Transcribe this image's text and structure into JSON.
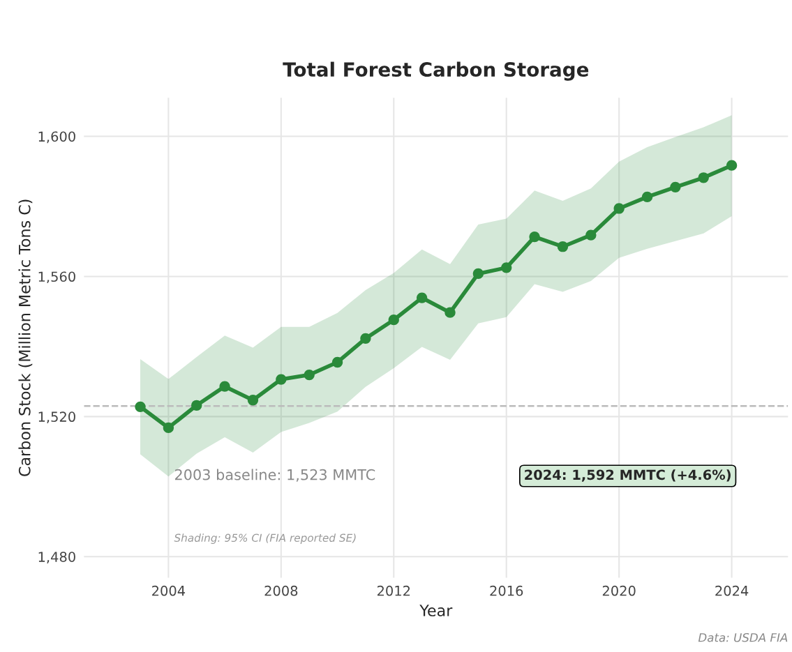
{
  "chart_data": {
    "type": "line",
    "title": "Total Forest Carbon Storage",
    "xlabel": "Year",
    "ylabel": "Carbon Stock (Million Metric Tons C)",
    "x": [
      2003,
      2004,
      2005,
      2006,
      2007,
      2008,
      2009,
      2010,
      2011,
      2012,
      2013,
      2014,
      2015,
      2016,
      2017,
      2018,
      2019,
      2020,
      2021,
      2022,
      2023,
      2024
    ],
    "series": [
      {
        "color": "#2a8a3a",
        "values": [
          1522.8,
          1516.8,
          1523.2,
          1528.6,
          1524.7,
          1530.6,
          1531.9,
          1535.5,
          1542.3,
          1547.6,
          1553.9,
          1549.7,
          1560.8,
          1562.5,
          1571.3,
          1568.5,
          1571.8,
          1579.4,
          1582.7,
          1585.5,
          1588.2,
          1591.7
        ],
        "upper": [
          1536.4,
          1530.7,
          1537.0,
          1543.1,
          1539.7,
          1545.6,
          1545.6,
          1549.6,
          1556.1,
          1561.0,
          1567.7,
          1563.5,
          1574.8,
          1576.5,
          1584.5,
          1581.6,
          1585.1,
          1592.8,
          1596.9,
          1599.8,
          1602.6,
          1606.0
        ],
        "lower": [
          1509.2,
          1502.9,
          1509.4,
          1514.1,
          1509.7,
          1515.6,
          1518.2,
          1521.4,
          1528.5,
          1533.8,
          1539.9,
          1536.2,
          1546.6,
          1548.4,
          1557.8,
          1555.6,
          1558.7,
          1565.3,
          1567.9,
          1570.1,
          1572.3,
          1577.2
        ]
      }
    ],
    "xlim": [
      2001,
      2026
    ],
    "xticks": [
      2004,
      2008,
      2012,
      2016,
      2020,
      2024
    ],
    "ylim": [
      1474,
      1611
    ],
    "yticks": [
      {
        "value": 1480,
        "label": "1,480"
      },
      {
        "value": 1520,
        "label": "1,520"
      },
      {
        "value": 1560,
        "label": "1,560"
      },
      {
        "value": 1600,
        "label": "1,600"
      }
    ],
    "ref_lines": [
      {
        "axis": "y",
        "value": 1523,
        "color": "#bbbbbb",
        "line_style": "dashed"
      }
    ],
    "annotations": [
      "2003 baseline: 1,523 MMTC",
      "2024: 1,592 MMTC (+4.6%)",
      "Shading: 95% CI (FIA reported SE)",
      "Data: USDA FIA"
    ],
    "grid": true,
    "marker": "circle",
    "line_style": "solid"
  }
}
